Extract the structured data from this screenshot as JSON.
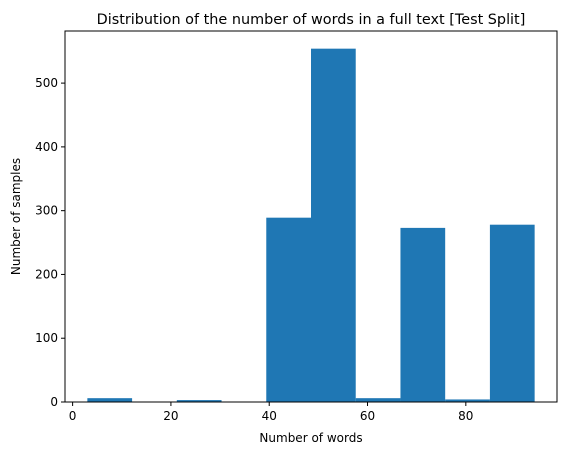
{
  "chart_data": {
    "type": "bar",
    "title": "Distribution of the number of words in a full text [Test Split]",
    "xlabel": "Number of words",
    "ylabel": "Number of samples",
    "bar_color": "#1f77b4",
    "bins": [
      {
        "start": 3.0,
        "end": 12.1,
        "value": 6
      },
      {
        "start": 12.1,
        "end": 21.2,
        "value": 0
      },
      {
        "start": 21.2,
        "end": 30.3,
        "value": 3
      },
      {
        "start": 30.3,
        "end": 39.4,
        "value": 0
      },
      {
        "start": 39.4,
        "end": 48.5,
        "value": 289
      },
      {
        "start": 48.5,
        "end": 57.6,
        "value": 554
      },
      {
        "start": 57.6,
        "end": 66.7,
        "value": 6
      },
      {
        "start": 66.7,
        "end": 75.8,
        "value": 273
      },
      {
        "start": 75.8,
        "end": 84.9,
        "value": 4
      },
      {
        "start": 84.9,
        "end": 94.0,
        "value": 278
      }
    ],
    "xlim": [
      -1.55,
      98.55
    ],
    "ylim": [
      0,
      581.7
    ],
    "xticks": [
      0,
      20,
      40,
      60,
      80
    ],
    "yticks": [
      0,
      100,
      200,
      300,
      400,
      500
    ],
    "grid": false
  }
}
